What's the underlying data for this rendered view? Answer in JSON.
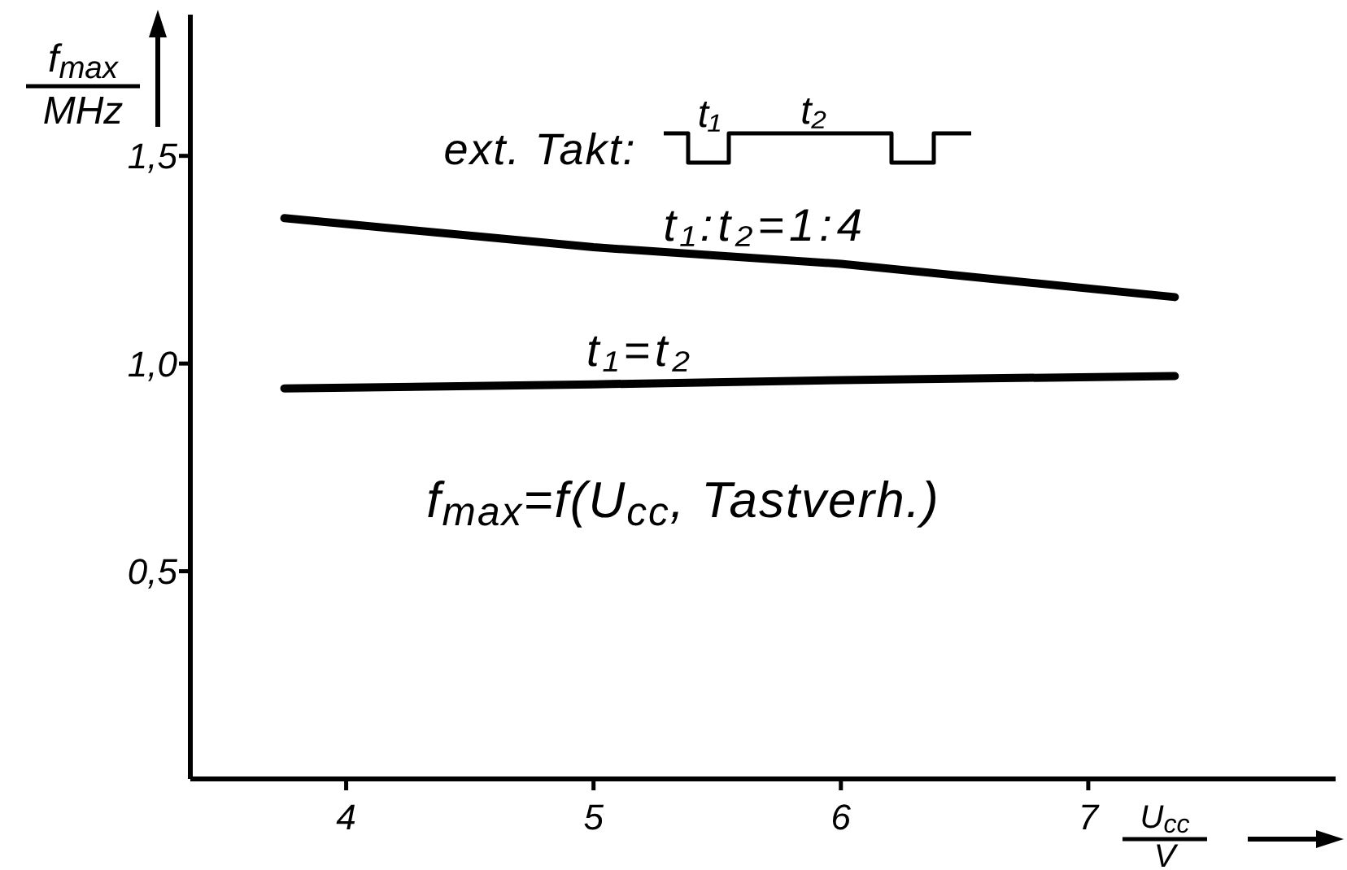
{
  "chart_data": {
    "type": "line",
    "xlabel": "U$_{cc}$\nV",
    "ylabel": "f$_{max}$\nMHz",
    "x": [
      3.75,
      5,
      6,
      7.35
    ],
    "series": [
      {
        "name": "t₁:t₂=1:4",
        "color": "#000000",
        "values": [
          1.35,
          1.28,
          1.24,
          1.16
        ]
      },
      {
        "name": "t₁=t₂",
        "color": "#000000",
        "values": [
          0.94,
          0.95,
          0.96,
          0.97
        ]
      }
    ],
    "xlim": [
      3.37,
      8.0
    ],
    "xticks": [
      4,
      5,
      6,
      7
    ],
    "ylim": [
      0,
      1.84
    ],
    "yticks": [
      {
        "value": 0.5,
        "label": "0,5"
      },
      {
        "value": 1.0,
        "label": "1,0"
      },
      {
        "value": 1.5,
        "label": "1,5"
      }
    ],
    "annotations": [
      "ext. Takt:",
      "t₁",
      "t₂",
      "f$_{max}$=f(U$_{cc}$, Tastverh.)"
    ],
    "grid": false,
    "legend": false,
    "marker": "none",
    "line_style": "solid"
  }
}
